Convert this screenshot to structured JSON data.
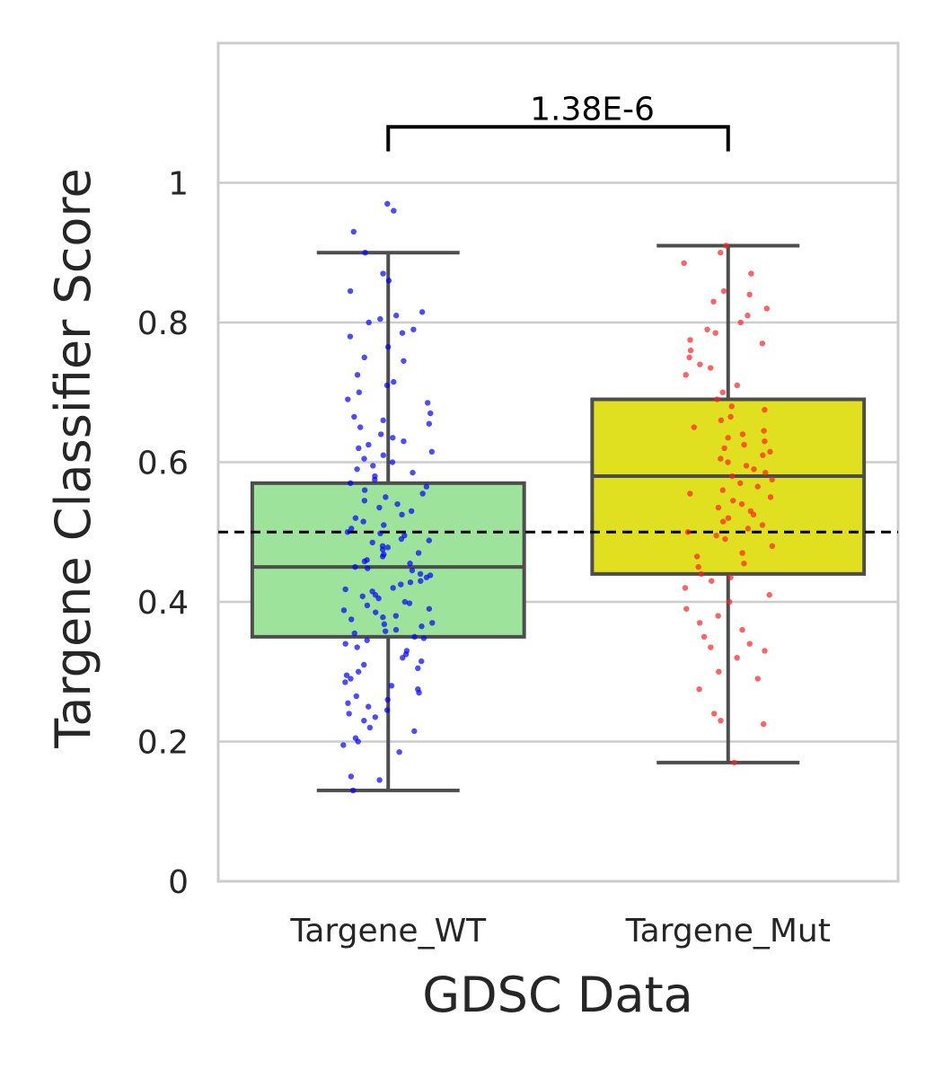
{
  "chart_data": {
    "type": "box",
    "title": "",
    "xlabel": "GDSC Data",
    "ylabel": "Targene Classifier Score",
    "ylim": [
      0,
      1.2
    ],
    "yticks": [
      0,
      0.2,
      0.4,
      0.6,
      0.8,
      1
    ],
    "ytick_labels": [
      "0",
      "0.2",
      "0.4",
      "0.6",
      "0.8",
      "1"
    ],
    "grid": "horizontal",
    "threshold_line": 0.5,
    "categories": [
      "Targene_WT",
      "Targene_Mut"
    ],
    "boxes": [
      {
        "category": "Targene_WT",
        "whisker_low": 0.13,
        "q1": 0.35,
        "median": 0.45,
        "q3": 0.57,
        "whisker_high": 0.9,
        "box_color": "#9de39b",
        "point_color": "#0000ff"
      },
      {
        "category": "Targene_Mut",
        "whisker_low": 0.17,
        "q1": 0.44,
        "median": 0.58,
        "q3": 0.69,
        "whisker_high": 0.91,
        "box_color": "#e0e020",
        "point_color": "#ff2020"
      }
    ],
    "points": [
      {
        "category": "Targene_WT",
        "y": [
          0.97,
          0.96,
          0.93,
          0.9,
          0.87,
          0.86,
          0.845,
          0.815,
          0.81,
          0.805,
          0.8,
          0.79,
          0.785,
          0.78,
          0.765,
          0.75,
          0.745,
          0.725,
          0.715,
          0.71,
          0.7,
          0.69,
          0.685,
          0.67,
          0.665,
          0.66,
          0.655,
          0.65,
          0.64,
          0.635,
          0.63,
          0.625,
          0.62,
          0.615,
          0.61,
          0.605,
          0.6,
          0.595,
          0.59,
          0.585,
          0.58,
          0.575,
          0.57,
          0.565,
          0.56,
          0.555,
          0.55,
          0.545,
          0.54,
          0.535,
          0.53,
          0.525,
          0.52,
          0.515,
          0.51,
          0.505,
          0.5,
          0.498,
          0.495,
          0.49,
          0.488,
          0.485,
          0.48,
          0.478,
          0.475,
          0.47,
          0.468,
          0.465,
          0.46,
          0.458,
          0.455,
          0.45,
          0.448,
          0.445,
          0.44,
          0.438,
          0.435,
          0.43,
          0.428,
          0.425,
          0.42,
          0.418,
          0.415,
          0.41,
          0.408,
          0.405,
          0.4,
          0.398,
          0.395,
          0.39,
          0.388,
          0.385,
          0.38,
          0.378,
          0.375,
          0.37,
          0.368,
          0.365,
          0.36,
          0.358,
          0.355,
          0.35,
          0.348,
          0.345,
          0.34,
          0.335,
          0.33,
          0.325,
          0.32,
          0.315,
          0.31,
          0.305,
          0.3,
          0.295,
          0.29,
          0.285,
          0.28,
          0.275,
          0.27,
          0.265,
          0.26,
          0.255,
          0.25,
          0.245,
          0.24,
          0.235,
          0.23,
          0.22,
          0.215,
          0.205,
          0.2,
          0.195,
          0.185,
          0.15,
          0.145,
          0.13
        ]
      },
      {
        "category": "Targene_Mut",
        "y": [
          0.91,
          0.9,
          0.885,
          0.87,
          0.845,
          0.84,
          0.83,
          0.82,
          0.81,
          0.8,
          0.79,
          0.785,
          0.775,
          0.77,
          0.76,
          0.75,
          0.74,
          0.735,
          0.725,
          0.71,
          0.7,
          0.69,
          0.68,
          0.675,
          0.665,
          0.66,
          0.65,
          0.645,
          0.64,
          0.635,
          0.63,
          0.625,
          0.62,
          0.615,
          0.61,
          0.605,
          0.6,
          0.595,
          0.59,
          0.585,
          0.58,
          0.575,
          0.57,
          0.565,
          0.56,
          0.555,
          0.55,
          0.545,
          0.54,
          0.535,
          0.53,
          0.525,
          0.52,
          0.515,
          0.51,
          0.505,
          0.5,
          0.495,
          0.49,
          0.48,
          0.47,
          0.465,
          0.455,
          0.45,
          0.44,
          0.435,
          0.43,
          0.42,
          0.41,
          0.4,
          0.39,
          0.38,
          0.37,
          0.36,
          0.35,
          0.34,
          0.335,
          0.33,
          0.32,
          0.3,
          0.29,
          0.275,
          0.24,
          0.23,
          0.225,
          0.17
        ]
      }
    ],
    "significance": {
      "label": "1.38E-6",
      "between": [
        "Targene_WT",
        "Targene_Mut"
      ]
    }
  }
}
